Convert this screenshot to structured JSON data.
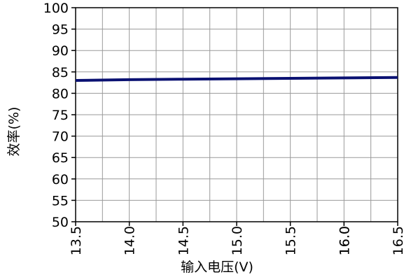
{
  "chart_data": {
    "type": "line",
    "xlabel": "输入电压(V)",
    "ylabel": "效率(%)",
    "xlim": [
      13.5,
      16.5
    ],
    "ylim": [
      50,
      100
    ],
    "x_ticks": [
      "13.5",
      "14.0",
      "14.5",
      "15.0",
      "15.5",
      "16.0",
      "16.0",
      "16.5"
    ],
    "x_tick_values": [
      13.5,
      14.0,
      14.5,
      15.0,
      15.5,
      16.0,
      16.0,
      16.5
    ],
    "y_ticks": [
      50,
      55,
      60,
      65,
      70,
      75,
      80,
      85,
      90,
      95,
      100
    ],
    "grid": true,
    "series": [
      {
        "color": "#0a1172",
        "x": [
          13.5,
          14.0,
          14.5,
          15.0,
          15.5,
          16.0,
          16.5
        ],
        "y": [
          83.0,
          83.2,
          83.3,
          83.4,
          83.5,
          83.6,
          83.7
        ]
      }
    ]
  }
}
